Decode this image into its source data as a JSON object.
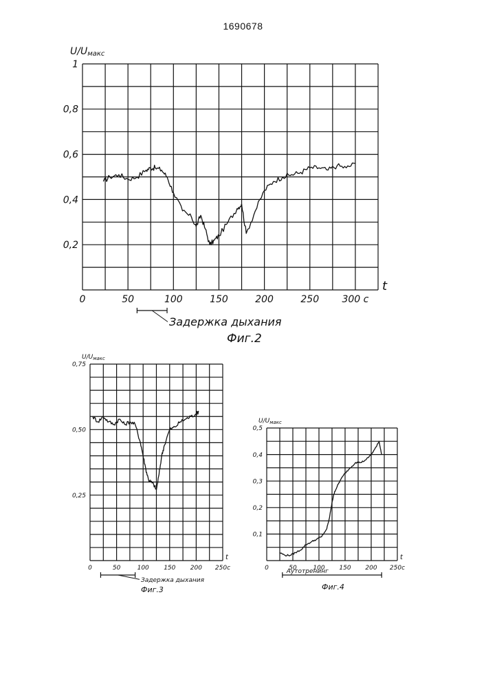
{
  "document": {
    "number": "1690678"
  },
  "chart_data": [
    {
      "type": "line",
      "title": "",
      "figure_label": "Фиг.2",
      "ylabel": "U/U",
      "ylabel_sub": "макс",
      "xlabel": "t",
      "x_unit_suffix": "с",
      "xlim": [
        0,
        325
      ],
      "ylim": [
        0,
        1
      ],
      "grid": true,
      "x_ticks": [
        0,
        50,
        100,
        150,
        200,
        250,
        300
      ],
      "x_tick_labels": [
        "0",
        "50",
        "100",
        "150",
        "200",
        "250",
        "300 с"
      ],
      "y_ticks": [
        0.2,
        0.4,
        0.6,
        0.8,
        1
      ],
      "y_tick_labels": [
        "0,2",
        "0,4",
        "0,6",
        "0,8",
        "1"
      ],
      "annotation": {
        "text": "Задержка дыхания",
        "x_from": 60,
        "x_to": 93
      },
      "x": [
        23,
        30,
        40,
        50,
        60,
        70,
        75,
        80,
        87,
        93,
        100,
        110,
        120,
        125,
        130,
        135,
        140,
        145,
        150,
        160,
        170,
        175,
        180,
        190,
        200,
        210,
        220,
        230,
        240,
        250,
        260,
        270,
        280,
        290,
        300
      ],
      "values": [
        0.48,
        0.5,
        0.51,
        0.49,
        0.5,
        0.53,
        0.54,
        0.54,
        0.53,
        0.5,
        0.43,
        0.35,
        0.32,
        0.28,
        0.33,
        0.27,
        0.2,
        0.22,
        0.24,
        0.3,
        0.36,
        0.38,
        0.25,
        0.35,
        0.44,
        0.48,
        0.5,
        0.51,
        0.52,
        0.54,
        0.54,
        0.53,
        0.55,
        0.54,
        0.56
      ]
    },
    {
      "type": "line",
      "title": "",
      "figure_label": "Фиг.3",
      "ylabel": "U/U",
      "ylabel_sub": "макс",
      "xlabel": "t",
      "x_unit_suffix": "с",
      "xlim": [
        0,
        250
      ],
      "ylim": [
        0,
        0.75
      ],
      "grid": true,
      "x_ticks": [
        0,
        50,
        100,
        150,
        200,
        250
      ],
      "x_tick_labels": [
        "0",
        "50",
        "100",
        "150",
        "200",
        "250с"
      ],
      "y_ticks": [
        0.25,
        0.5,
        0.75
      ],
      "y_tick_labels": [
        "0,25",
        "0,50",
        "0,75"
      ],
      "annotation": {
        "text": "Задержка дыхания",
        "x_from": 20,
        "x_to": 85
      },
      "x": [
        5,
        15,
        25,
        35,
        45,
        55,
        65,
        75,
        85,
        95,
        100,
        105,
        110,
        115,
        120,
        125,
        130,
        135,
        140,
        150,
        160,
        170,
        180,
        190,
        200,
        205
      ],
      "values": [
        0.55,
        0.53,
        0.55,
        0.53,
        0.52,
        0.54,
        0.52,
        0.53,
        0.52,
        0.45,
        0.4,
        0.35,
        0.31,
        0.3,
        0.29,
        0.27,
        0.33,
        0.4,
        0.44,
        0.5,
        0.51,
        0.53,
        0.54,
        0.55,
        0.56,
        0.57
      ]
    },
    {
      "type": "line",
      "title": "",
      "figure_label": "Фиг.4",
      "ylabel": "U/U",
      "ylabel_sub": "макс",
      "xlabel": "t",
      "x_unit_suffix": "с",
      "xlim": [
        0,
        250
      ],
      "ylim": [
        0,
        0.5
      ],
      "grid": true,
      "x_ticks": [
        0,
        50,
        100,
        150,
        200,
        250
      ],
      "x_tick_labels": [
        "0",
        "50",
        "100",
        "150",
        "200",
        "250с"
      ],
      "y_ticks": [
        0.1,
        0.2,
        0.3,
        0.4,
        0.5
      ],
      "y_tick_labels": [
        "0,1",
        "0,2",
        "0,3",
        "0,4",
        "0,5"
      ],
      "annotation": {
        "text": "Аутотренинг",
        "x_from": 30,
        "x_to": 220
      },
      "x": [
        25,
        35,
        45,
        55,
        65,
        75,
        85,
        95,
        105,
        115,
        120,
        125,
        130,
        135,
        140,
        150,
        160,
        170,
        180,
        190,
        200,
        210,
        215,
        220
      ],
      "values": [
        0.03,
        0.02,
        0.02,
        0.03,
        0.04,
        0.06,
        0.07,
        0.08,
        0.09,
        0.12,
        0.16,
        0.22,
        0.26,
        0.28,
        0.3,
        0.33,
        0.35,
        0.37,
        0.37,
        0.38,
        0.4,
        0.43,
        0.45,
        0.4
      ]
    }
  ]
}
